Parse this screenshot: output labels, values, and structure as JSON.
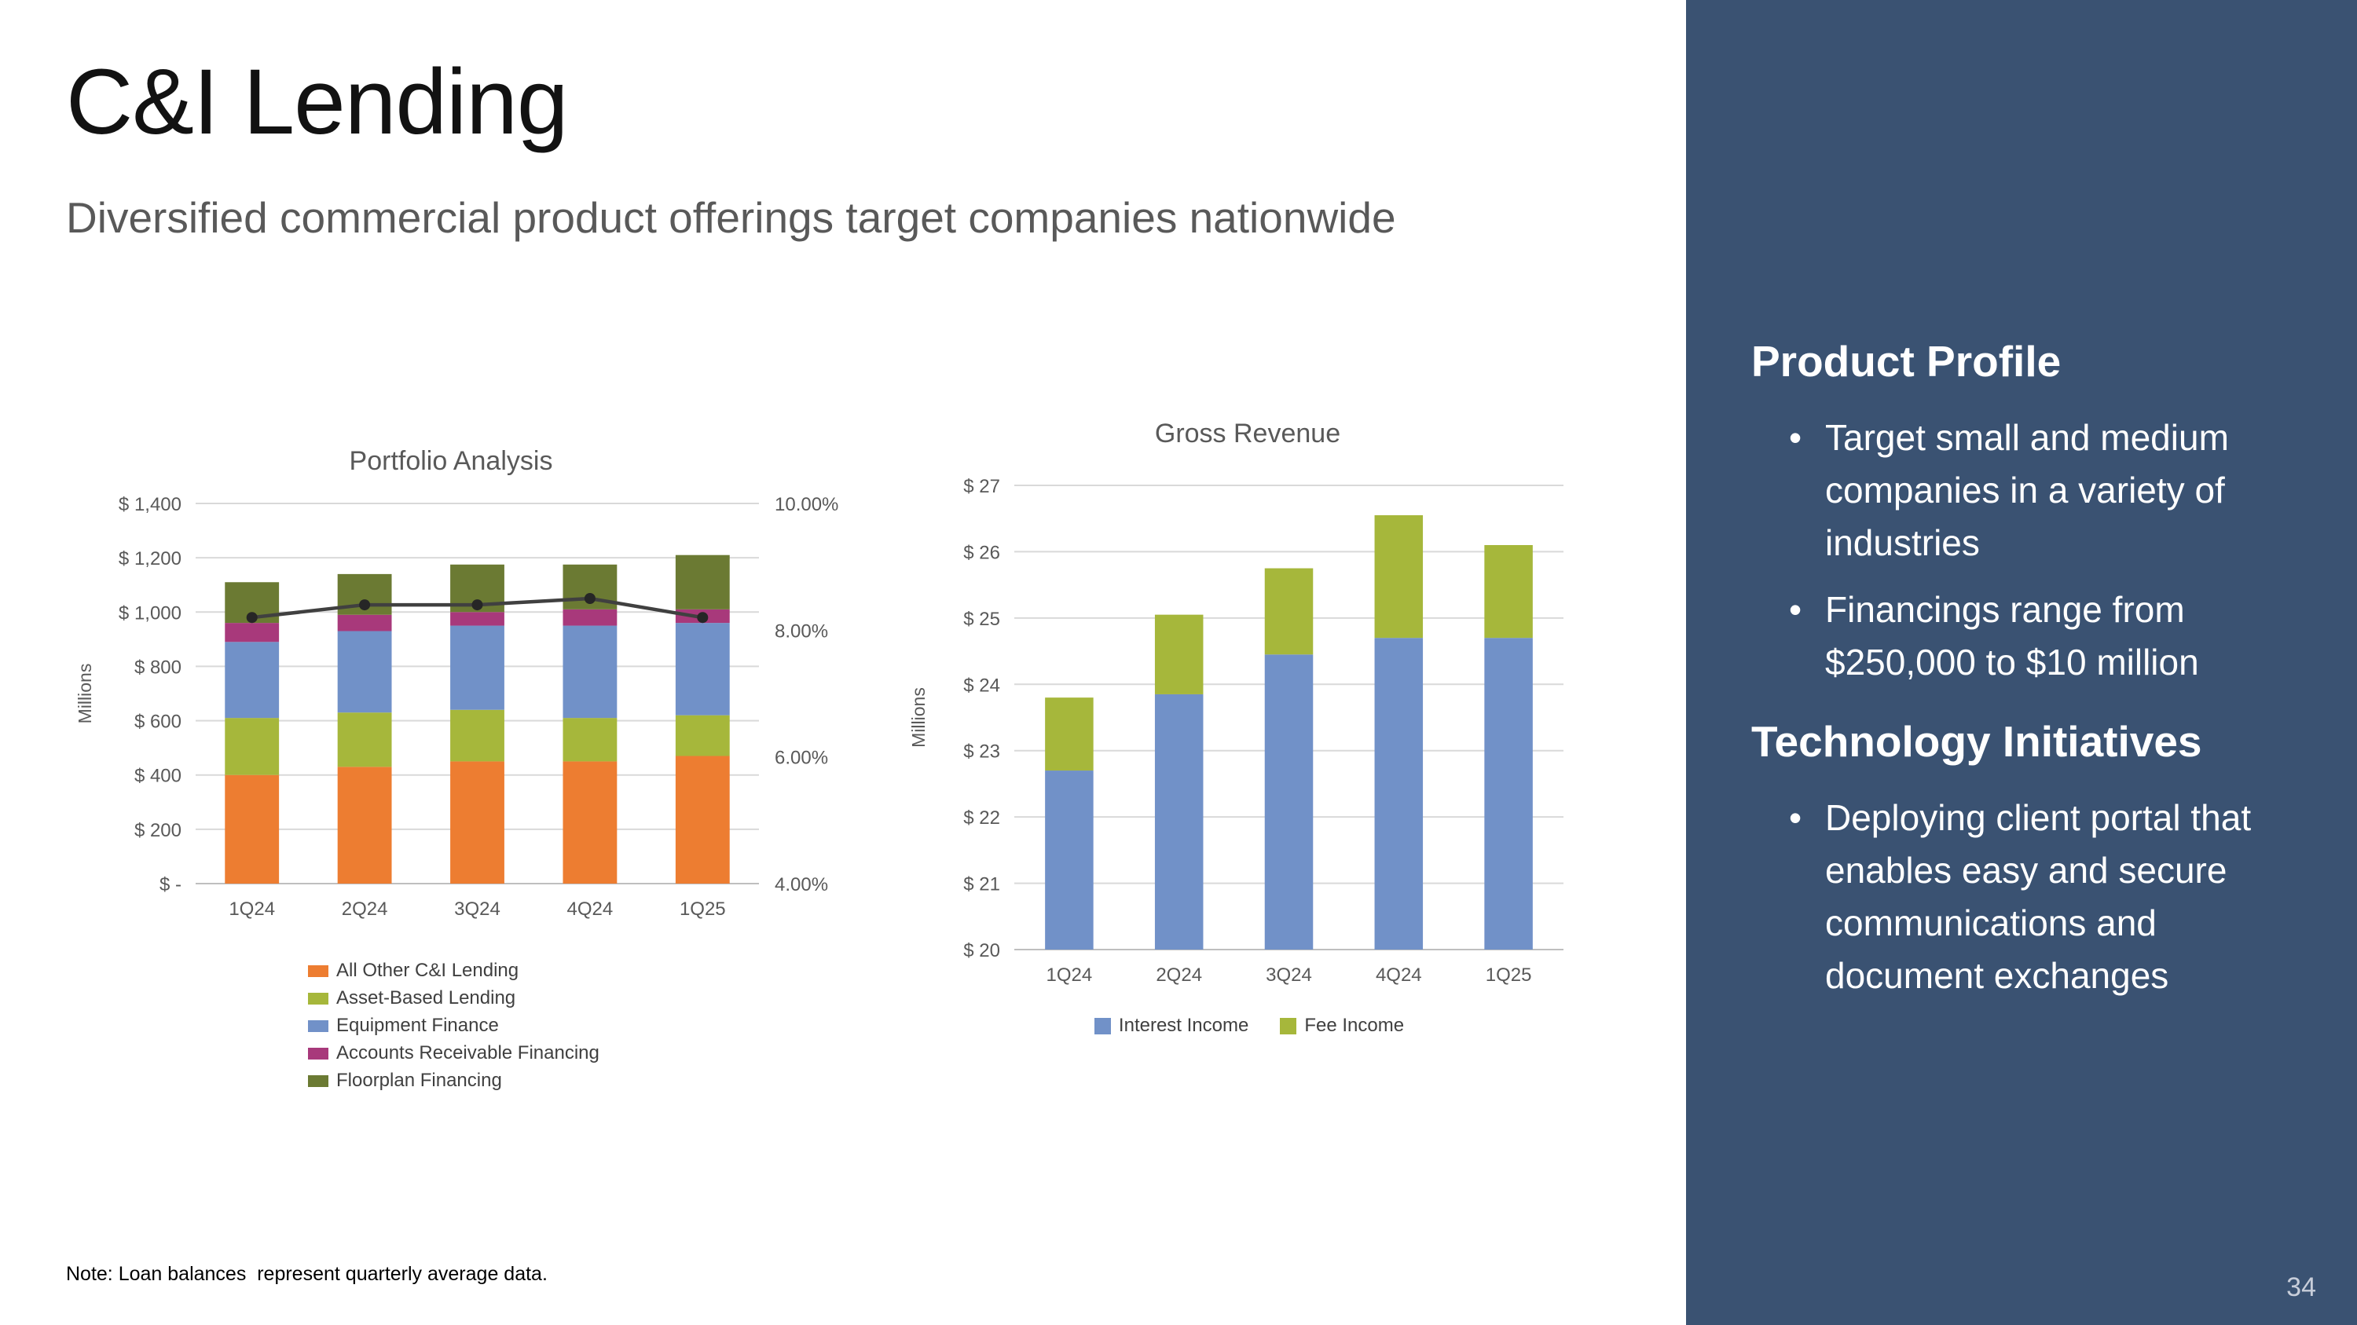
{
  "slide": {
    "title": "C&I Lending",
    "subtitle": "Diversified commercial product offerings target companies nationwide",
    "note": "Note: Loan balances  represent quarterly average data.",
    "page_number": "34"
  },
  "sidebar": {
    "background_color": "#3A5272",
    "sections": [
      {
        "heading": "Product Profile",
        "bullets": [
          "Target small and medium companies in a variety of industries",
          "Financings range from $250,000 to $10 million"
        ]
      },
      {
        "heading": "Technology Initiatives",
        "bullets": [
          "Deploying client portal that enables easy and secure communications and document exchanges"
        ]
      }
    ]
  },
  "chart_data": [
    {
      "type": "bar",
      "stacked": true,
      "title": "Portfolio Analysis",
      "categories": [
        "1Q24",
        "2Q24",
        "3Q24",
        "4Q24",
        "1Q25"
      ],
      "series": [
        {
          "name": "All Other C&I Lending",
          "color": "#ED7D31",
          "values": [
            400,
            430,
            450,
            450,
            470
          ]
        },
        {
          "name": "Asset-Based Lending",
          "color": "#A6B73B",
          "values": [
            210,
            200,
            190,
            160,
            150
          ]
        },
        {
          "name": "Equipment Finance",
          "color": "#7191C8",
          "values": [
            280,
            300,
            310,
            340,
            340
          ]
        },
        {
          "name": "Accounts Receivable Financing",
          "color": "#A8397B",
          "values": [
            70,
            60,
            50,
            60,
            50
          ]
        },
        {
          "name": "Floorplan Financing",
          "color": "#6B7A33",
          "values": [
            150,
            150,
            175,
            165,
            200
          ]
        }
      ],
      "line_series": {
        "name": "",
        "color": "#404040",
        "values": [
          8.2,
          8.4,
          8.4,
          8.5,
          8.2
        ]
      },
      "ylabel": "Millions",
      "ylim": [
        0,
        1400
      ],
      "ytick_step": 200,
      "ytick_format": "usd",
      "y2lim": [
        4,
        10
      ],
      "y2tick_step": 2,
      "y2tick_format": "pct",
      "grid": true,
      "legend_position": "bottom-left"
    },
    {
      "type": "bar",
      "stacked": true,
      "title": "Gross Revenue",
      "categories": [
        "1Q24",
        "2Q24",
        "3Q24",
        "4Q24",
        "1Q25"
      ],
      "series": [
        {
          "name": "Interest Income",
          "color": "#7191C8",
          "values": [
            22.7,
            23.85,
            24.45,
            24.7,
            24.7
          ]
        },
        {
          "name": "Fee Income",
          "color": "#A6B73B",
          "values": [
            1.1,
            1.2,
            1.3,
            1.85,
            1.4
          ]
        }
      ],
      "ylabel": "Millions",
      "ylim": [
        20,
        27
      ],
      "ytick_step": 1,
      "ytick_format": "usd",
      "grid": true,
      "legend_position": "bottom"
    }
  ]
}
